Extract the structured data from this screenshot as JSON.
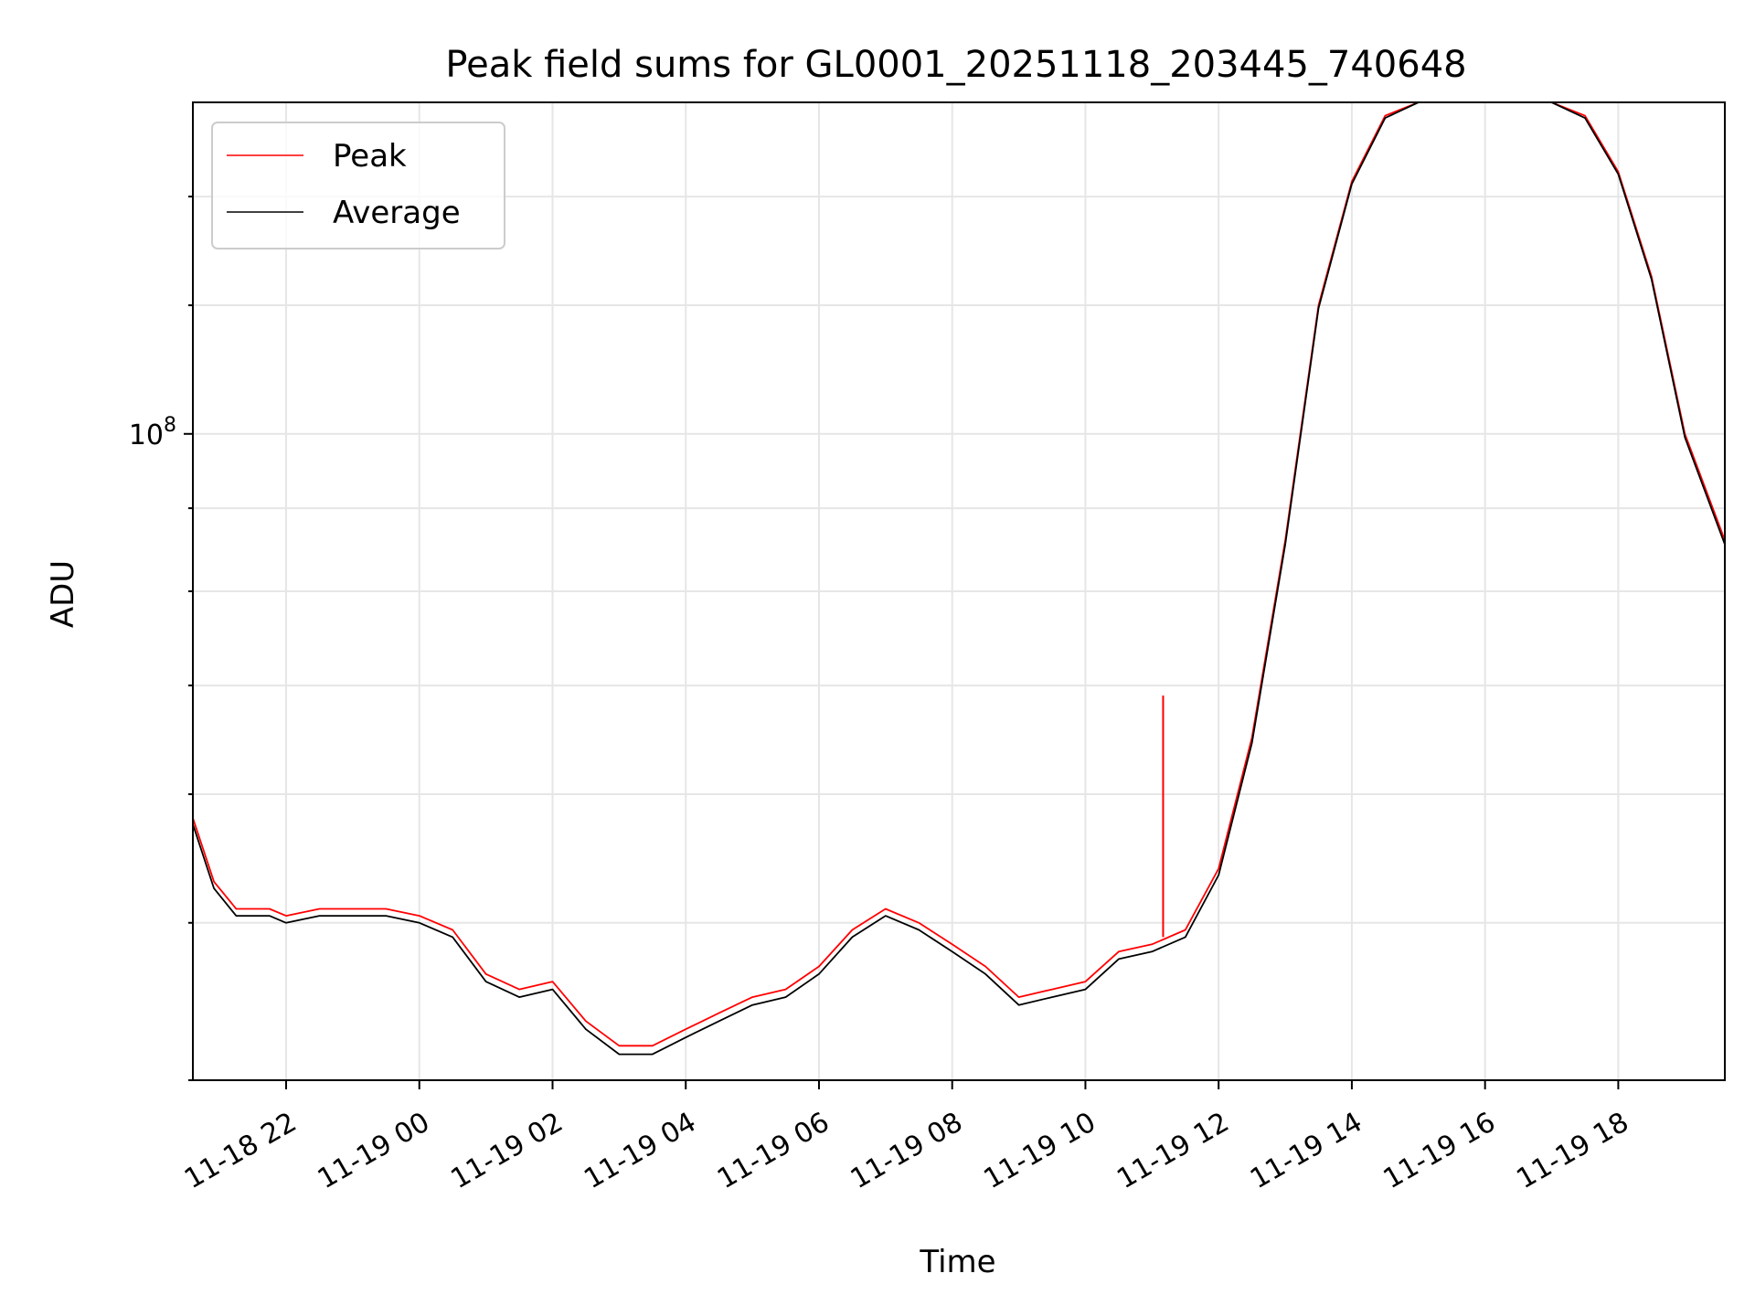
{
  "chart_data": {
    "type": "line",
    "title": "Peak field sums for GL0001_20251118_203445_740648",
    "xlabel": "Time",
    "ylabel": "ADU",
    "yscale": "log",
    "grid": true,
    "legend_position": "top-left",
    "x_ticks": [
      "11-18 22",
      "11-19 00",
      "11-19 02",
      "11-19 04",
      "11-19 06",
      "11-19 08",
      "11-19 10",
      "11-19 12",
      "11-19 14",
      "11-19 16",
      "11-19 18"
    ],
    "y_ticks": [
      {
        "value": 100000000,
        "base": "10",
        "exp": "8"
      }
    ],
    "xlim": [
      "2025-11-18 20:36",
      "2025-11-19 19:36"
    ],
    "ylim": [
      40000000,
      160000000
    ],
    "colors": {
      "Peak": "#ff0000",
      "Average": "#000000"
    },
    "x": [
      "2025-11-18 20:36",
      "2025-11-18 20:55",
      "2025-11-18 21:15",
      "2025-11-18 21:45",
      "2025-11-18 22:00",
      "2025-11-18 22:30",
      "2025-11-18 23:00",
      "2025-11-18 23:30",
      "2025-11-19 00:00",
      "2025-11-19 00:30",
      "2025-11-19 01:00",
      "2025-11-19 01:30",
      "2025-11-19 02:00",
      "2025-11-19 02:30",
      "2025-11-19 03:00",
      "2025-11-19 03:30",
      "2025-11-19 04:00",
      "2025-11-19 04:30",
      "2025-11-19 05:00",
      "2025-11-19 05:30",
      "2025-11-19 06:00",
      "2025-11-19 06:30",
      "2025-11-19 07:00",
      "2025-11-19 07:30",
      "2025-11-19 08:00",
      "2025-11-19 08:30",
      "2025-11-19 09:00",
      "2025-11-19 09:30",
      "2025-11-19 10:00",
      "2025-11-19 10:30",
      "2025-11-19 11:00",
      "2025-11-19 11:30",
      "2025-11-19 12:00",
      "2025-11-19 12:30",
      "2025-11-19 13:00",
      "2025-11-19 13:30",
      "2025-11-19 14:00",
      "2025-11-19 14:30",
      "2025-11-19 15:00",
      "2025-11-19 15:30",
      "2025-11-19 16:00",
      "2025-11-19 16:30",
      "2025-11-19 17:00",
      "2025-11-19 17:30",
      "2025-11-19 18:00",
      "2025-11-19 18:30",
      "2025-11-19 19:00",
      "2025-11-19 19:36"
    ],
    "series": [
      {
        "name": "Peak",
        "values": [
          58000000,
          53000000,
          51000000,
          51000000,
          50500000,
          51000000,
          51000000,
          51000000,
          50500000,
          49500000,
          46500000,
          45500000,
          46000000,
          43500000,
          42000000,
          42000000,
          43000000,
          44000000,
          45000000,
          45500000,
          47000000,
          49500000,
          51000000,
          50000000,
          48500000,
          47000000,
          45000000,
          45500000,
          46000000,
          48000000,
          48500000,
          49500000,
          54000000,
          65000000,
          86000000,
          120000000,
          143000000,
          157000000,
          160000000,
          160000000,
          160000000,
          160000000,
          160000000,
          157000000,
          145000000,
          125000000,
          100000000,
          86000000
        ]
      },
      {
        "name": "Average",
        "values": [
          57500000,
          52500000,
          50500000,
          50500000,
          50000000,
          50500000,
          50500000,
          50500000,
          50000000,
          49000000,
          46000000,
          45000000,
          45500000,
          43000000,
          41500000,
          41500000,
          42500000,
          43500000,
          44500000,
          45000000,
          46500000,
          49000000,
          50500000,
          49500000,
          48000000,
          46500000,
          44500000,
          45000000,
          45500000,
          47500000,
          48000000,
          49000000,
          53500000,
          64500000,
          85500000,
          119500000,
          142500000,
          156500000,
          160000000,
          160000000,
          160000000,
          160000000,
          160000000,
          156500000,
          144500000,
          124500000,
          99500000,
          85500000
        ]
      }
    ],
    "spike": {
      "series": "Peak",
      "x": "2025-11-19 11:10",
      "value": 69000000,
      "base": 49000000
    }
  }
}
